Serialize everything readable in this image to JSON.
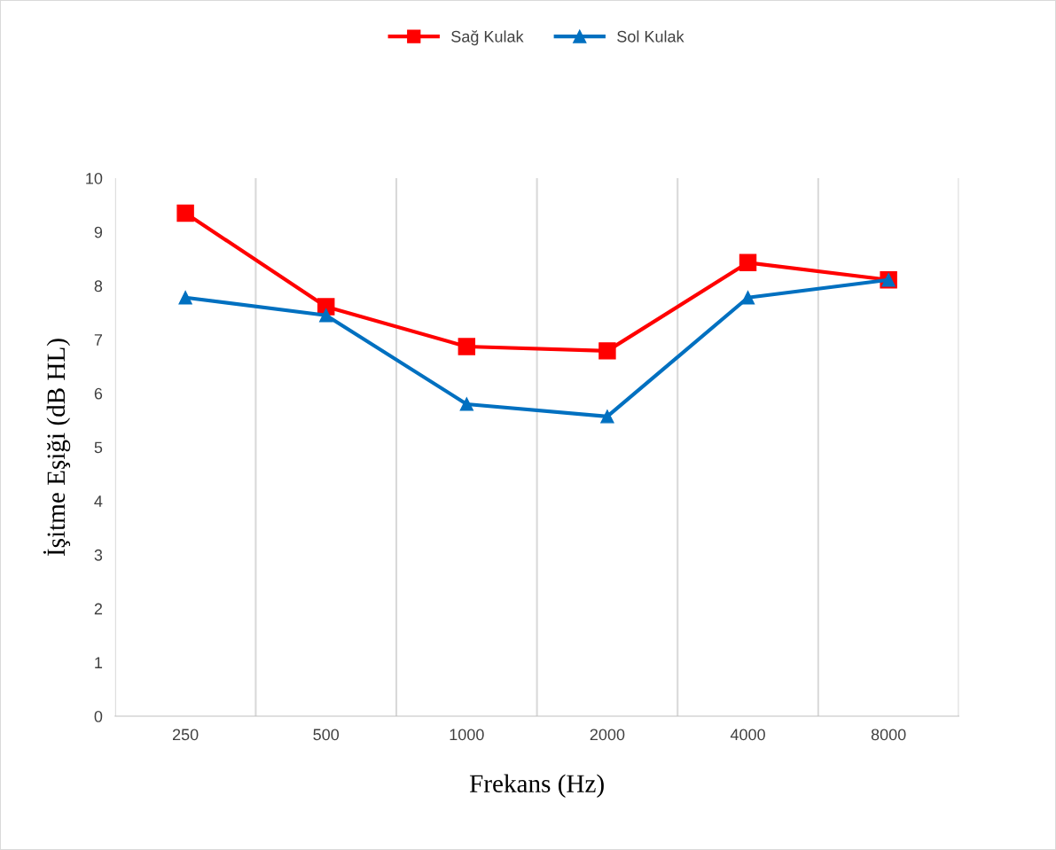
{
  "chart_data": {
    "type": "line",
    "xlabel": "Frekans (Hz)",
    "ylabel": "İşitme Eşiği (dB HL)",
    "categories": [
      "250",
      "500",
      "1000",
      "2000",
      "4000",
      "8000"
    ],
    "series": [
      {
        "name": "Sağ Kulak",
        "color": "#ff0000",
        "marker": "square",
        "values": [
          9.35,
          7.61,
          6.87,
          6.79,
          8.43,
          8.11
        ]
      },
      {
        "name": "Sol Kulak",
        "color": "#0070c0",
        "marker": "triangle",
        "values": [
          7.78,
          7.45,
          5.8,
          5.57,
          7.78,
          8.11
        ]
      }
    ],
    "ylim": [
      0,
      10
    ],
    "yticks": [
      0,
      1,
      2,
      3,
      4,
      5,
      6,
      7,
      8,
      9,
      10
    ],
    "grid": "x",
    "legend": "top",
    "line_style": "solid"
  }
}
